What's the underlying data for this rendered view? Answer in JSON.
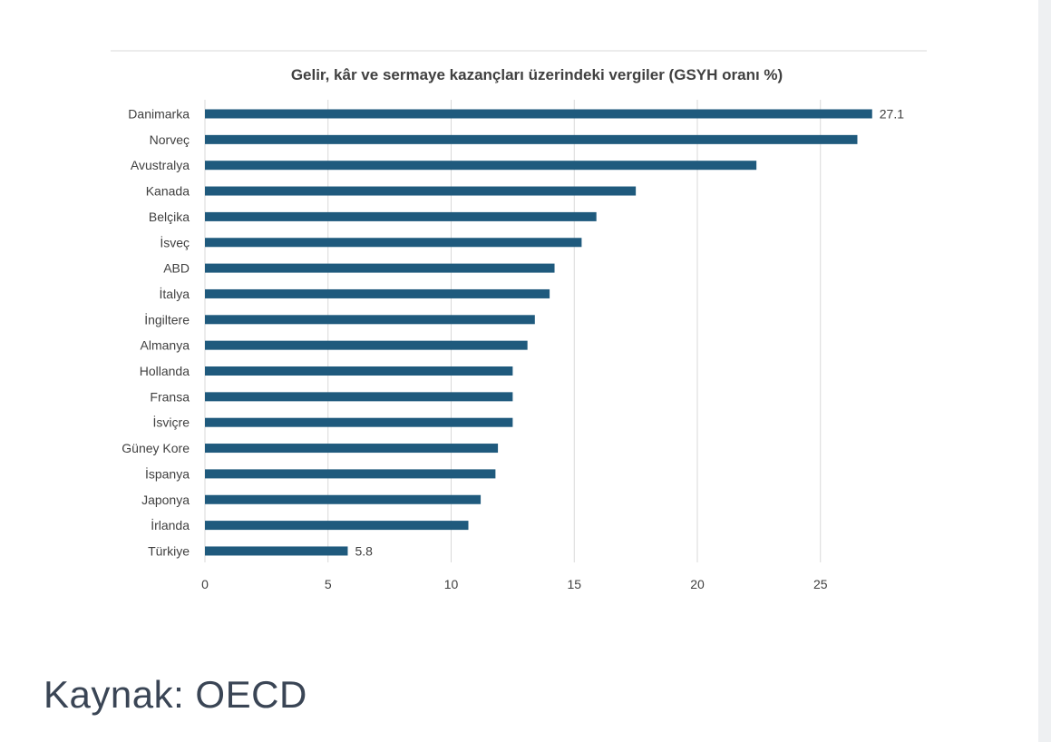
{
  "chart_data": {
    "type": "bar",
    "orientation": "horizontal",
    "title": "Gelir, kâr ve sermaye kazançları üzerindeki vergiler (GSYH oranı %)",
    "xlabel": "",
    "ylabel": "",
    "xlim": [
      0,
      27.1
    ],
    "xticks": [
      "0",
      "5",
      "10",
      "15",
      "20",
      "25"
    ],
    "grid": true,
    "bar_color": "#1f5a7d",
    "categories": [
      "Danimarka",
      "Norveç",
      "Avustralya",
      "Kanada",
      "Belçika",
      "İsveç",
      "ABD",
      "İtalya",
      "İngiltere",
      "Almanya",
      "Hollanda",
      "Fransa",
      "İsviçre",
      "Güney Kore",
      "İspanya",
      "Japonya",
      "İrlanda",
      "Türkiye"
    ],
    "values": [
      27.1,
      26.5,
      22.4,
      17.5,
      15.9,
      15.3,
      14.2,
      14.0,
      13.4,
      13.1,
      12.5,
      12.5,
      12.5,
      11.9,
      11.8,
      11.2,
      10.7,
      5.8
    ],
    "data_labels": [
      {
        "category": "Danimarka",
        "text": "27.1"
      },
      {
        "category": "Türkiye",
        "text": "5.8"
      }
    ]
  },
  "source": {
    "text": "Kaynak: OECD"
  }
}
